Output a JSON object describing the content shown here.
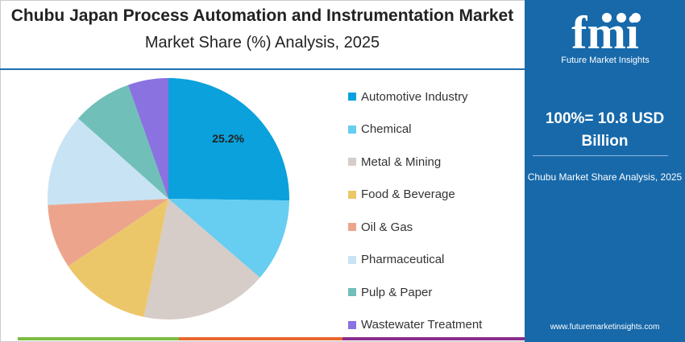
{
  "title": "Chubu Japan Process Automation and Instrumentation Market",
  "subtitle": "Market Share (%) Analysis, 2025",
  "side": {
    "logo_text": "fmi",
    "logo_tagline": "Future Market Insights",
    "total": "100%= 10.8 USD Billion",
    "caption": "Chubu Market Share Analysis, 2025",
    "url": "www.futuremarketinsights.com"
  },
  "chart_data": {
    "type": "pie",
    "title": "Chubu Japan Process Automation and Instrumentation Market",
    "subtitle": "Market Share (%) Analysis, 2025",
    "legend_position": "right",
    "slices": [
      {
        "name": "Automotive Industry",
        "value": 25.2,
        "color": "#0aa1dc",
        "label": "25.2%"
      },
      {
        "name": "Chemical",
        "value": 11.1,
        "color": "#67cdf1"
      },
      {
        "name": "Metal & Mining",
        "value": 16.9,
        "color": "#d6ccc8"
      },
      {
        "name": "Food & Beverage",
        "value": 12.3,
        "color": "#ecc76a"
      },
      {
        "name": "Oil & Gas",
        "value": 8.6,
        "color": "#eca58c"
      },
      {
        "name": "Pharmaceutical",
        "value": 12.4,
        "color": "#c8e3f4"
      },
      {
        "name": "Pulp & Paper",
        "value": 8.0,
        "color": "#70bfb9"
      },
      {
        "name": "Wastewater Treatment",
        "value": 5.4,
        "color": "#8a72e0"
      }
    ]
  }
}
